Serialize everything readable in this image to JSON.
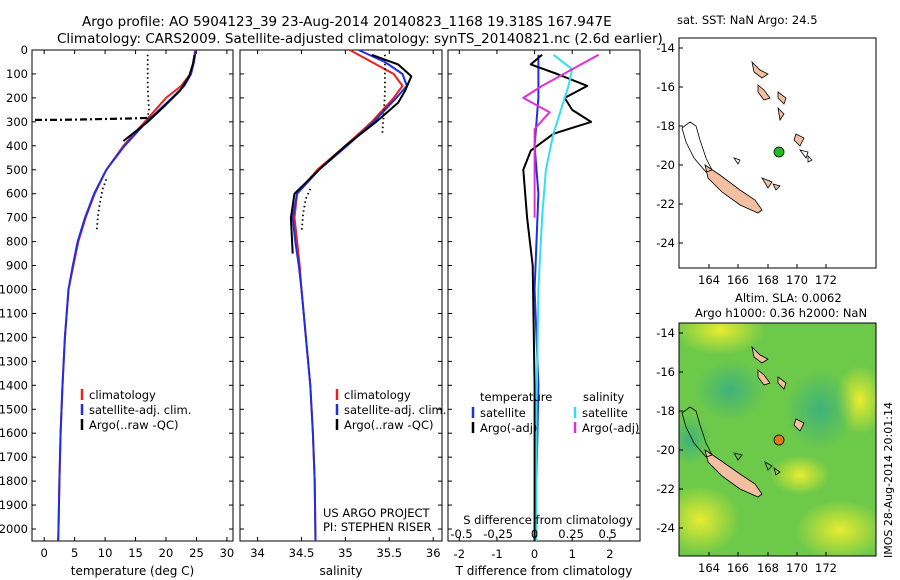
{
  "header": {
    "line1": "Argo profile: AO 5904123_39 23-Aug-2014 20140823_1168 19.318S 167.947E",
    "line2": "Climatology: CARS2009. Satellite-adjusted climatology: synTS_20140821.nc (2.6d earlier)"
  },
  "chart_data": [
    {
      "type": "line",
      "name": "temperature-panel",
      "xlabel": "temperature (deg C)",
      "xlim": [
        -2,
        31
      ],
      "ylim": [
        0,
        2050
      ],
      "xticks": [
        0,
        5,
        10,
        15,
        20,
        25,
        30
      ],
      "yticks": [
        0,
        100,
        200,
        300,
        400,
        500,
        600,
        700,
        800,
        900,
        1000,
        1100,
        1200,
        1300,
        1400,
        1500,
        1600,
        1700,
        1800,
        1900,
        2000
      ],
      "legend": [
        "climatology",
        "satellite-adj. clim.",
        "Argo(..raw -QC)"
      ],
      "legend_position": "lower-center",
      "colors": {
        "climatology": "#e8231f",
        "satellite": "#1f2fe0",
        "argo": "#000000"
      },
      "series": [
        {
          "name": "climatology",
          "color": "#e8231f",
          "x": [
            24.8,
            24.5,
            24,
            22.5,
            20,
            16.5,
            13,
            10.2,
            8.3,
            6.8,
            5.6,
            4.8,
            4.0,
            3.4,
            3.0,
            2.7,
            2.5,
            2.35,
            2.3
          ],
          "y": [
            0,
            50,
            100,
            150,
            200,
            300,
            400,
            500,
            600,
            700,
            800,
            900,
            1000,
            1200,
            1400,
            1600,
            1800,
            2000,
            2050
          ]
        },
        {
          "name": "satellite-adj. clim.",
          "color": "#1f2fe0",
          "x": [
            24.9,
            24.6,
            24.1,
            23,
            21,
            16.8,
            13.2,
            10.2,
            8.2,
            6.7,
            5.5,
            4.7,
            4.0,
            3.4,
            3.0,
            2.7,
            2.5,
            2.35,
            2.3
          ],
          "y": [
            0,
            50,
            100,
            150,
            200,
            300,
            400,
            500,
            600,
            700,
            800,
            900,
            1000,
            1200,
            1400,
            1600,
            1800,
            2000,
            2050
          ]
        },
        {
          "name": "Argo",
          "color": "#000000",
          "x": [
            24.7,
            24.4,
            23.8,
            22.3,
            19.5,
            17,
            15,
            14,
            13
          ],
          "y": [
            20,
            60,
            110,
            170,
            240,
            300,
            340,
            360,
            380
          ]
        },
        {
          "name": "Argo raw",
          "color": "#000000",
          "dotted": true,
          "x": [
            17,
            17,
            17,
            17.1,
            17.2,
            17.0,
            16.8
          ],
          "y": [
            20,
            80,
            150,
            200,
            250,
            280,
            300
          ]
        },
        {
          "name": "Argo raw deep",
          "color": "#000000",
          "dotted": true,
          "x": [
            10.2,
            9.6,
            9.3,
            9.0,
            8.8,
            8.6
          ],
          "y": [
            540,
            580,
            620,
            660,
            700,
            760
          ]
        },
        {
          "name": "Argo outlier",
          "color": "#000000",
          "dashdot": true,
          "x": [
            -1.5,
            2,
            6,
            10,
            14,
            16.5,
            17.5
          ],
          "y": [
            292,
            292,
            290,
            288,
            286,
            284,
            282
          ]
        }
      ]
    },
    {
      "type": "line",
      "name": "salinity-panel",
      "xlabel": "salinity",
      "xlim": [
        33.8,
        36.1
      ],
      "ylim": [
        0,
        2050
      ],
      "xticks": [
        34,
        34.5,
        35,
        35.5,
        36
      ],
      "legend": [
        "climatology",
        "satellite-adj. clim.",
        "Argo(..raw -QC)"
      ],
      "legend_position": "lower-center",
      "annotation": [
        "US ARGO PROJECT",
        "PI: STEPHEN RISER"
      ],
      "series": [
        {
          "name": "climatology",
          "color": "#e8231f",
          "x": [
            35.05,
            35.3,
            35.55,
            35.65,
            35.55,
            35.3,
            35.0,
            34.68,
            34.45,
            34.42,
            34.45,
            34.48,
            34.5,
            34.55,
            34.6,
            34.63,
            34.65,
            34.66
          ],
          "y": [
            0,
            50,
            100,
            150,
            200,
            300,
            400,
            500,
            600,
            700,
            800,
            900,
            1000,
            1200,
            1400,
            1600,
            1800,
            2050
          ]
        },
        {
          "name": "satellite-adj. clim.",
          "color": "#1f2fe0",
          "x": [
            35.15,
            35.45,
            35.65,
            35.7,
            35.58,
            35.32,
            35.02,
            34.7,
            34.45,
            34.4,
            34.43,
            34.47,
            34.5,
            34.55,
            34.6,
            34.63,
            34.65,
            34.66
          ],
          "y": [
            0,
            50,
            100,
            150,
            200,
            300,
            400,
            500,
            600,
            700,
            800,
            900,
            1000,
            1200,
            1400,
            1600,
            1800,
            2050
          ]
        },
        {
          "name": "Argo",
          "color": "#000000",
          "x": [
            35.3,
            35.6,
            35.75,
            35.68,
            35.6,
            35.35,
            35.0,
            34.7,
            34.42,
            34.38,
            34.4
          ],
          "y": [
            20,
            60,
            110,
            170,
            220,
            300,
            400,
            500,
            600,
            700,
            850
          ]
        },
        {
          "name": "Argo raw",
          "color": "#000000",
          "dotted": true,
          "x": [
            35.45,
            35.45,
            35.45,
            35.44,
            35.43,
            35.42
          ],
          "y": [
            20,
            100,
            180,
            250,
            300,
            350
          ]
        },
        {
          "name": "Argo raw deep",
          "color": "#000000",
          "dotted": true,
          "x": [
            34.6,
            34.55,
            34.52,
            34.5
          ],
          "y": [
            580,
            620,
            680,
            760
          ]
        }
      ]
    },
    {
      "type": "line",
      "name": "difference-panel",
      "xlabel": "T difference from climatology",
      "xlabel_top": "S difference from climatology",
      "xlim": [
        -2.3,
        2.8
      ],
      "ylim": [
        0,
        2050
      ],
      "xticks": [
        -2,
        -1,
        0,
        1,
        2
      ],
      "xticks_s": [
        "-0.5",
        "-0.25",
        "0",
        "0.25",
        "0.5"
      ],
      "legend_temperature_title": "temperature",
      "legend_salinity_title": "salinity",
      "legend": [
        "satellite",
        "Argo(-adj)",
        "satellite",
        "Argo(-adj)"
      ],
      "series": [
        {
          "name": "temperature satellite",
          "color": "#1f2fe0",
          "x": [
            0.1,
            0.1,
            0.0,
            0.1,
            0.05,
            0.0,
            0.1,
            0.05,
            0.0
          ],
          "y": [
            20,
            200,
            400,
            600,
            800,
            1000,
            1400,
            1800,
            2050
          ]
        },
        {
          "name": "temperature Argo(-adj)",
          "color": "#000000",
          "x": [
            0.2,
            -0.1,
            0.6,
            1.4,
            0.8,
            1.0,
            1.5,
            0.5,
            -0.1,
            -0.3,
            -0.2,
            -0.05,
            0.0,
            0.0
          ],
          "y": [
            20,
            60,
            100,
            150,
            200,
            250,
            300,
            350,
            420,
            500,
            700,
            900,
            1400,
            2050
          ]
        },
        {
          "name": "salinity satellite",
          "color": "#33dfef",
          "x": [
            0.5,
            1.0,
            0.9,
            0.7,
            0.5,
            0.3,
            0.2,
            0.1,
            0.05,
            0.05
          ],
          "y": [
            20,
            80,
            150,
            250,
            350,
            500,
            700,
            1000,
            1500,
            2050
          ]
        },
        {
          "name": "salinity Argo(-adj)",
          "color": "#e030d8",
          "x": [
            1.7,
            1.0,
            0.2,
            -0.3,
            0.4,
            0.0,
            0.0
          ],
          "y": [
            20,
            80,
            150,
            200,
            260,
            330,
            700
          ]
        }
      ]
    }
  ],
  "map_top": {
    "title": "sat. SST: NaN Argo: 24.5",
    "xticks": [
      "164",
      "166",
      "168",
      "170",
      "172"
    ],
    "yticks": [
      "-14",
      "-16",
      "-18",
      "-20",
      "-22",
      "-24"
    ],
    "marker_color": "#22bb22"
  },
  "map_bottom": {
    "title1": "Altim. SLA: 0.0062",
    "title2": "Argo h1000: 0.36 h2000: NaN",
    "xticks": [
      "164",
      "166",
      "168",
      "170",
      "172"
    ],
    "yticks": [
      "-14",
      "-16",
      "-18",
      "-20",
      "-22",
      "-24"
    ],
    "marker_color": "#e07a10"
  },
  "side_label": "IMOS 28-Aug-2014 20:01:14"
}
